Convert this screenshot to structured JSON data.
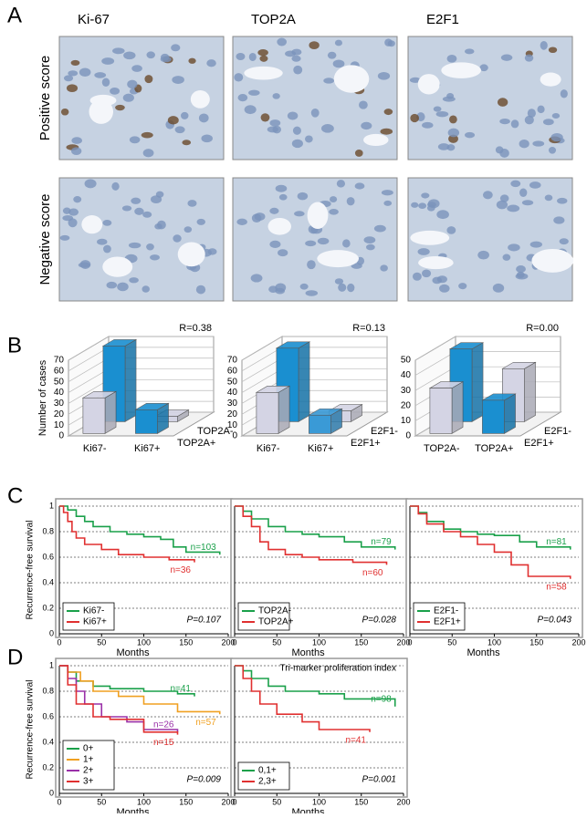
{
  "panel_labels": [
    "A",
    "B",
    "C",
    "D"
  ],
  "panel_a": {
    "columns": [
      "Ki-67",
      "TOP2A",
      "E2F1"
    ],
    "rows": [
      "Positive score",
      "Negative score"
    ]
  },
  "chart_data": [
    {
      "type": "bar3d",
      "annotation": "R=0.38",
      "ylabel": "Number of cases",
      "categories": [
        "Ki67-",
        "Ki67+"
      ],
      "ylim": [
        0,
        70
      ],
      "yticks": [
        0,
        10,
        20,
        30,
        40,
        50,
        60,
        70
      ],
      "series": [
        {
          "name": "TOP2A+",
          "colors": [
            "#d4d4e4",
            "#1a8fd0"
          ],
          "values": [
            33,
            22
          ]
        },
        {
          "name": "TOP2A-",
          "colors": [
            "#1a8fd0",
            "#d4d4e4"
          ],
          "values": [
            70,
            5
          ]
        }
      ]
    },
    {
      "type": "bar3d",
      "annotation": "R=0.13",
      "categories": [
        "Ki67-",
        "Ki67+"
      ],
      "ylim": [
        0,
        70
      ],
      "yticks": [
        0,
        10,
        20,
        30,
        40,
        50,
        60,
        70
      ],
      "series": [
        {
          "name": "E2F1+",
          "colors": [
            "#d4d4e4",
            "#3a9ad6"
          ],
          "values": [
            38,
            17
          ]
        },
        {
          "name": "E2F1-",
          "colors": [
            "#1a8fd0",
            "#d4d4e4"
          ],
          "values": [
            68,
            10
          ]
        }
      ]
    },
    {
      "type": "bar3d",
      "annotation": "R=0.00",
      "categories": [
        "TOP2A-",
        "TOP2A+"
      ],
      "ylim": [
        0,
        50
      ],
      "yticks": [
        0,
        10,
        20,
        30,
        40,
        50
      ],
      "series": [
        {
          "name": "E2F1+",
          "colors": [
            "#d4d4e4",
            "#1a8fd0"
          ],
          "values": [
            30,
            22
          ]
        },
        {
          "name": "E2F1-",
          "colors": [
            "#1a8fd0",
            "#d4d4e4"
          ],
          "values": [
            48,
            35
          ]
        }
      ]
    },
    {
      "type": "line",
      "ylabel": "Recurrence-free survival",
      "xlabel": "Months",
      "annotation": "P=0.107",
      "xlim": [
        0,
        200
      ],
      "ylim": [
        0,
        1
      ],
      "xticks": [
        0,
        50,
        100,
        150,
        200
      ],
      "yticks": [
        0,
        0.2,
        0.4,
        0.6,
        0.8,
        1
      ],
      "grid": true,
      "series": [
        {
          "name": "Ki67-",
          "color": "#1aa04a",
          "n_label": "n=103",
          "x": [
            0,
            10,
            20,
            30,
            40,
            60,
            80,
            100,
            120,
            135,
            150,
            190
          ],
          "values": [
            1,
            0.97,
            0.92,
            0.88,
            0.84,
            0.8,
            0.78,
            0.76,
            0.74,
            0.68,
            0.64,
            0.62
          ]
        },
        {
          "name": "Ki67+",
          "color": "#e03030",
          "n_label": "n=36",
          "x": [
            0,
            5,
            10,
            15,
            20,
            30,
            50,
            70,
            100,
            130,
            160
          ],
          "values": [
            1,
            0.95,
            0.88,
            0.8,
            0.75,
            0.7,
            0.66,
            0.62,
            0.6,
            0.58,
            0.56
          ]
        }
      ]
    },
    {
      "type": "line",
      "xlabel": "Months",
      "annotation": "P=0.028",
      "xlim": [
        0,
        200
      ],
      "ylim": [
        0,
        1
      ],
      "xticks": [
        0,
        50,
        100,
        150,
        200
      ],
      "yticks": [
        0,
        0.2,
        0.4,
        0.6,
        0.8,
        1
      ],
      "grid": true,
      "series": [
        {
          "name": "TOP2A-",
          "color": "#1aa04a",
          "n_label": "n=79",
          "x": [
            0,
            10,
            20,
            40,
            60,
            80,
            100,
            130,
            150,
            190
          ],
          "values": [
            1,
            0.96,
            0.9,
            0.84,
            0.8,
            0.78,
            0.76,
            0.72,
            0.68,
            0.66
          ]
        },
        {
          "name": "TOP2A+",
          "color": "#e03030",
          "n_label": "n=60",
          "x": [
            0,
            10,
            20,
            30,
            40,
            60,
            80,
            100,
            140,
            180
          ],
          "values": [
            1,
            0.92,
            0.84,
            0.72,
            0.66,
            0.62,
            0.6,
            0.58,
            0.56,
            0.54
          ]
        }
      ]
    },
    {
      "type": "line",
      "xlabel": "Months",
      "annotation": "P=0.043",
      "xlim": [
        0,
        200
      ],
      "ylim": [
        0,
        1
      ],
      "xticks": [
        0,
        50,
        100,
        150,
        200
      ],
      "yticks": [
        0,
        0.2,
        0.4,
        0.6,
        0.8,
        1
      ],
      "grid": true,
      "series": [
        {
          "name": "E2F1-",
          "color": "#1aa04a",
          "n_label": "n=81",
          "x": [
            0,
            10,
            20,
            40,
            60,
            80,
            100,
            130,
            150,
            190
          ],
          "values": [
            1,
            0.95,
            0.88,
            0.82,
            0.8,
            0.78,
            0.77,
            0.72,
            0.68,
            0.66
          ]
        },
        {
          "name": "E2F1+",
          "color": "#e03030",
          "n_label": "n=58",
          "x": [
            0,
            10,
            20,
            40,
            60,
            80,
            100,
            120,
            140,
            190
          ],
          "values": [
            1,
            0.94,
            0.86,
            0.8,
            0.76,
            0.7,
            0.64,
            0.54,
            0.45,
            0.43
          ]
        }
      ]
    },
    {
      "type": "line",
      "ylabel": "Recurrence-free survival",
      "xlabel": "Months",
      "annotation": "P=0.009",
      "xlim": [
        0,
        200
      ],
      "ylim": [
        0,
        1
      ],
      "xticks": [
        0,
        50,
        100,
        150,
        200
      ],
      "yticks": [
        0,
        0.2,
        0.4,
        0.6,
        0.8,
        1
      ],
      "grid": true,
      "series": [
        {
          "name": "0+",
          "color": "#1aa04a",
          "n_label": "n=41",
          "x": [
            0,
            10,
            20,
            40,
            60,
            100,
            140,
            160
          ],
          "values": [
            1,
            0.95,
            0.88,
            0.84,
            0.82,
            0.8,
            0.78,
            0.76
          ]
        },
        {
          "name": "1+",
          "color": "#f0a020",
          "n_label": "n=57",
          "x": [
            0,
            10,
            25,
            40,
            70,
            100,
            140,
            190
          ],
          "values": [
            1,
            0.95,
            0.88,
            0.8,
            0.76,
            0.7,
            0.64,
            0.62
          ]
        },
        {
          "name": "2+",
          "color": "#9a30a8",
          "n_label": "n=26",
          "x": [
            0,
            10,
            20,
            30,
            50,
            80,
            100,
            140
          ],
          "values": [
            1,
            0.9,
            0.8,
            0.7,
            0.6,
            0.56,
            0.5,
            0.48
          ]
        },
        {
          "name": "3+",
          "color": "#e03030",
          "n_label": "n=15",
          "x": [
            0,
            10,
            20,
            40,
            60,
            100,
            140
          ],
          "values": [
            1,
            0.85,
            0.7,
            0.6,
            0.58,
            0.48,
            0.46
          ]
        }
      ]
    },
    {
      "type": "line",
      "title": "Tri-marker proliferation index",
      "xlabel": "Months",
      "annotation": "P=0.001",
      "xlim": [
        0,
        200
      ],
      "ylim": [
        0,
        1
      ],
      "xticks": [
        0,
        50,
        100,
        150,
        200
      ],
      "yticks": [
        0,
        0.2,
        0.4,
        0.6,
        0.8,
        1
      ],
      "grid": true,
      "series": [
        {
          "name": "0,1+",
          "color": "#1aa04a",
          "n_label": "n=98",
          "x": [
            0,
            10,
            20,
            40,
            60,
            100,
            130,
            190
          ],
          "values": [
            1,
            0.96,
            0.9,
            0.84,
            0.8,
            0.78,
            0.74,
            0.68
          ]
        },
        {
          "name": "2,3+",
          "color": "#e03030",
          "n_label": "n=41",
          "x": [
            0,
            10,
            20,
            30,
            50,
            80,
            100,
            160
          ],
          "values": [
            1,
            0.9,
            0.8,
            0.7,
            0.62,
            0.56,
            0.5,
            0.48
          ]
        }
      ]
    }
  ]
}
